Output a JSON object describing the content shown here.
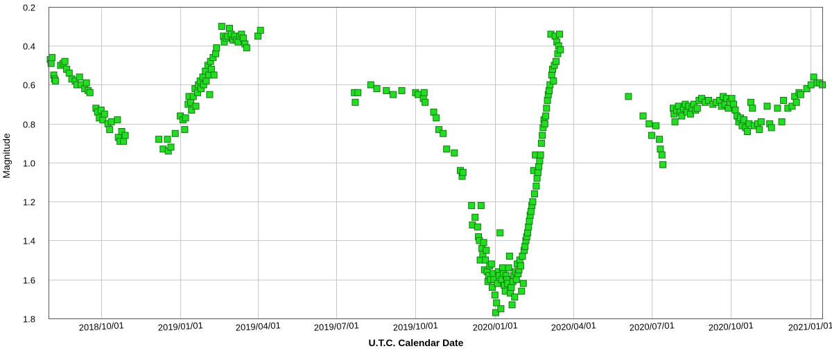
{
  "chart_data": {
    "type": "scatter",
    "title": "",
    "xlabel": "U.T.C. Calendar Date",
    "ylabel": "Magnitude",
    "y_inverted": true,
    "ylim": [
      0.2,
      1.8
    ],
    "xlim": [
      "2018-08-01",
      "2021-01-15"
    ],
    "x_ticks": [
      "2018/10/01",
      "2019/01/01",
      "2019/04/01",
      "2019/07/01",
      "2019/10/01",
      "2020/01/01",
      "2020/04/01",
      "2020/07/01",
      "2020/10/01",
      "2021/01/01"
    ],
    "y_ticks": [
      "0.2",
      "0.4",
      "0.6",
      "0.8",
      "1.0",
      "1.2",
      "1.4",
      "1.6",
      "1.8"
    ],
    "grid": true,
    "marker": "square",
    "marker_color": "#22dd22",
    "marker_edge": "#117711",
    "points": [
      [
        "2018-08-03",
        0.47
      ],
      [
        "2018-08-04",
        0.49
      ],
      [
        "2018-08-05",
        0.46
      ],
      [
        "2018-08-07",
        0.55
      ],
      [
        "2018-08-08",
        0.57
      ],
      [
        "2018-08-09",
        0.58
      ],
      [
        "2018-08-15",
        0.5
      ],
      [
        "2018-08-18",
        0.49
      ],
      [
        "2018-08-20",
        0.48
      ],
      [
        "2018-08-22",
        0.52
      ],
      [
        "2018-08-25",
        0.54
      ],
      [
        "2018-08-28",
        0.57
      ],
      [
        "2018-09-01",
        0.58
      ],
      [
        "2018-09-03",
        0.6
      ],
      [
        "2018-09-06",
        0.56
      ],
      [
        "2018-09-08",
        0.6
      ],
      [
        "2018-09-12",
        0.62
      ],
      [
        "2018-09-14",
        0.59
      ],
      [
        "2018-09-16",
        0.63
      ],
      [
        "2018-09-18",
        0.64
      ],
      [
        "2018-09-25",
        0.72
      ],
      [
        "2018-09-27",
        0.74
      ],
      [
        "2018-09-29",
        0.77
      ],
      [
        "2018-10-01",
        0.73
      ],
      [
        "2018-10-03",
        0.78
      ],
      [
        "2018-10-05",
        0.75
      ],
      [
        "2018-10-09",
        0.8
      ],
      [
        "2018-10-11",
        0.83
      ],
      [
        "2018-10-13",
        0.79
      ],
      [
        "2018-10-20",
        0.78
      ],
      [
        "2018-10-21",
        0.87
      ],
      [
        "2018-10-23",
        0.89
      ],
      [
        "2018-10-25",
        0.84
      ],
      [
        "2018-10-27",
        0.89
      ],
      [
        "2018-10-29",
        0.86
      ],
      [
        "2018-12-07",
        0.88
      ],
      [
        "2018-12-12",
        0.93
      ],
      [
        "2018-12-17",
        0.88
      ],
      [
        "2018-12-18",
        0.94
      ],
      [
        "2018-12-21",
        0.92
      ],
      [
        "2018-12-26",
        0.85
      ],
      [
        "2019-01-01",
        0.76
      ],
      [
        "2019-01-04",
        0.78
      ],
      [
        "2019-01-06",
        0.83
      ],
      [
        "2019-01-07",
        0.77
      ],
      [
        "2019-01-10",
        0.7
      ],
      [
        "2019-01-11",
        0.66
      ],
      [
        "2019-01-13",
        0.69
      ],
      [
        "2019-01-14",
        0.73
      ],
      [
        "2019-01-16",
        0.66
      ],
      [
        "2019-01-18",
        0.62
      ],
      [
        "2019-01-19",
        0.71
      ],
      [
        "2019-01-21",
        0.64
      ],
      [
        "2019-01-22",
        0.6
      ],
      [
        "2019-01-24",
        0.58
      ],
      [
        "2019-01-25",
        0.62
      ],
      [
        "2019-01-27",
        0.56
      ],
      [
        "2019-01-28",
        0.6
      ],
      [
        "2019-01-30",
        0.53
      ],
      [
        "2019-01-31",
        0.58
      ],
      [
        "2019-02-02",
        0.5
      ],
      [
        "2019-02-03",
        0.55
      ],
      [
        "2019-02-04",
        0.65
      ],
      [
        "2019-02-05",
        0.48
      ],
      [
        "2019-02-06",
        0.52
      ],
      [
        "2019-02-08",
        0.46
      ],
      [
        "2019-02-09",
        0.55
      ],
      [
        "2019-02-11",
        0.44
      ],
      [
        "2019-02-12",
        0.41
      ],
      [
        "2019-02-18",
        0.3
      ],
      [
        "2019-02-20",
        0.35
      ],
      [
        "2019-02-21",
        0.38
      ],
      [
        "2019-02-23",
        0.36
      ],
      [
        "2019-02-25",
        0.35
      ],
      [
        "2019-02-27",
        0.31
      ],
      [
        "2019-03-01",
        0.34
      ],
      [
        "2019-03-03",
        0.37
      ],
      [
        "2019-03-05",
        0.35
      ],
      [
        "2019-03-07",
        0.37
      ],
      [
        "2019-03-09",
        0.38
      ],
      [
        "2019-03-11",
        0.35
      ],
      [
        "2019-03-13",
        0.34
      ],
      [
        "2019-03-15",
        0.36
      ],
      [
        "2019-03-17",
        0.39
      ],
      [
        "2019-03-19",
        0.41
      ],
      [
        "2019-04-01",
        0.35
      ],
      [
        "2019-04-04",
        0.32
      ],
      [
        "2019-07-22",
        0.64
      ],
      [
        "2019-07-23",
        0.69
      ],
      [
        "2019-07-26",
        0.64
      ],
      [
        "2019-08-10",
        0.6
      ],
      [
        "2019-08-17",
        0.62
      ],
      [
        "2019-08-28",
        0.63
      ],
      [
        "2019-09-05",
        0.65
      ],
      [
        "2019-09-15",
        0.63
      ],
      [
        "2019-10-01",
        0.64
      ],
      [
        "2019-10-04",
        0.65
      ],
      [
        "2019-10-10",
        0.67
      ],
      [
        "2019-10-11",
        0.64
      ],
      [
        "2019-10-12",
        0.69
      ],
      [
        "2019-10-22",
        0.74
      ],
      [
        "2019-10-25",
        0.77
      ],
      [
        "2019-10-28",
        0.83
      ],
      [
        "2019-11-02",
        0.85
      ],
      [
        "2019-11-06",
        0.93
      ],
      [
        "2019-11-15",
        0.95
      ],
      [
        "2019-11-22",
        1.04
      ],
      [
        "2019-11-24",
        1.07
      ],
      [
        "2019-11-25",
        1.05
      ],
      [
        "2019-12-05",
        1.22
      ],
      [
        "2019-12-06",
        1.32
      ],
      [
        "2019-12-09",
        1.28
      ],
      [
        "2019-12-12",
        1.33
      ],
      [
        "2019-12-13",
        1.38
      ],
      [
        "2019-12-14",
        1.4
      ],
      [
        "2019-12-15",
        1.5
      ],
      [
        "2019-12-16",
        1.22
      ],
      [
        "2019-12-17",
        1.44
      ],
      [
        "2019-12-18",
        1.47
      ],
      [
        "2019-12-19",
        1.41
      ],
      [
        "2019-12-20",
        1.55
      ],
      [
        "2019-12-21",
        1.5
      ],
      [
        "2019-12-22",
        1.45
      ],
      [
        "2019-12-23",
        1.56
      ],
      [
        "2019-12-24",
        1.61
      ],
      [
        "2019-12-25",
        1.58
      ],
      [
        "2019-12-26",
        1.53
      ],
      [
        "2019-12-27",
        1.6
      ],
      [
        "2019-12-28",
        1.52
      ],
      [
        "2019-12-29",
        1.64
      ],
      [
        "2019-12-30",
        1.57
      ],
      [
        "2019-12-31",
        1.6
      ],
      [
        "2020-01-01",
        1.68
      ],
      [
        "2020-01-02",
        1.77
      ],
      [
        "2020-01-03",
        1.72
      ],
      [
        "2020-01-04",
        1.62
      ],
      [
        "2020-01-05",
        1.56
      ],
      [
        "2020-01-06",
        1.58
      ],
      [
        "2020-01-07",
        1.36
      ],
      [
        "2020-01-08",
        1.75
      ],
      [
        "2020-01-09",
        1.6
      ],
      [
        "2020-01-10",
        1.54
      ],
      [
        "2020-01-11",
        1.57
      ],
      [
        "2020-01-12",
        1.63
      ],
      [
        "2020-01-13",
        1.66
      ],
      [
        "2020-01-14",
        1.58
      ],
      [
        "2020-01-15",
        1.6
      ],
      [
        "2020-01-16",
        1.62
      ],
      [
        "2020-01-17",
        1.54
      ],
      [
        "2020-01-18",
        1.48
      ],
      [
        "2020-01-19",
        1.67
      ],
      [
        "2020-01-20",
        1.64
      ],
      [
        "2020-01-21",
        1.73
      ],
      [
        "2020-01-22",
        1.61
      ],
      [
        "2020-01-23",
        1.58
      ],
      [
        "2020-01-24",
        1.69
      ],
      [
        "2020-01-25",
        1.56
      ],
      [
        "2020-01-26",
        1.6
      ],
      [
        "2020-01-27",
        1.52
      ],
      [
        "2020-01-28",
        1.57
      ],
      [
        "2020-01-29",
        1.55
      ],
      [
        "2020-01-30",
        1.5
      ],
      [
        "2020-01-31",
        1.53
      ],
      [
        "2020-02-01",
        1.66
      ],
      [
        "2020-02-02",
        1.48
      ],
      [
        "2020-02-03",
        1.62
      ],
      [
        "2020-02-04",
        1.45
      ],
      [
        "2020-02-05",
        1.43
      ],
      [
        "2020-02-06",
        1.4
      ],
      [
        "2020-02-07",
        1.38
      ],
      [
        "2020-02-08",
        1.36
      ],
      [
        "2020-02-09",
        1.33
      ],
      [
        "2020-02-10",
        1.3
      ],
      [
        "2020-02-11",
        1.27
      ],
      [
        "2020-02-12",
        1.25
      ],
      [
        "2020-02-13",
        1.22
      ],
      [
        "2020-02-14",
        1.2
      ],
      [
        "2020-02-15",
        1.04
      ],
      [
        "2020-02-16",
        1.16
      ],
      [
        "2020-02-17",
        0.96
      ],
      [
        "2020-02-18",
        1.12
      ],
      [
        "2020-02-19",
        1.08
      ],
      [
        "2020-02-20",
        1.05
      ],
      [
        "2020-02-21",
        1.02
      ],
      [
        "2020-02-22",
        0.99
      ],
      [
        "2020-02-23",
        0.96
      ],
      [
        "2020-02-24",
        0.9
      ],
      [
        "2020-02-25",
        0.86
      ],
      [
        "2020-02-26",
        0.82
      ],
      [
        "2020-02-27",
        0.78
      ],
      [
        "2020-02-28",
        0.8
      ],
      [
        "2020-02-29",
        0.76
      ],
      [
        "2020-03-01",
        0.72
      ],
      [
        "2020-03-02",
        0.68
      ],
      [
        "2020-03-03",
        0.65
      ],
      [
        "2020-03-04",
        0.63
      ],
      [
        "2020-03-05",
        0.6
      ],
      [
        "2020-03-06",
        0.34
      ],
      [
        "2020-03-07",
        0.55
      ],
      [
        "2020-03-08",
        0.52
      ],
      [
        "2020-03-09",
        0.58
      ],
      [
        "2020-03-10",
        0.5
      ],
      [
        "2020-03-11",
        0.35
      ],
      [
        "2020-03-12",
        0.48
      ],
      [
        "2020-03-13",
        0.38
      ],
      [
        "2020-03-14",
        0.44
      ],
      [
        "2020-03-15",
        0.4
      ],
      [
        "2020-03-16",
        0.34
      ],
      [
        "2020-03-17",
        0.42
      ],
      [
        "2020-06-04",
        0.66
      ],
      [
        "2020-06-21",
        0.76
      ],
      [
        "2020-06-28",
        0.8
      ],
      [
        "2020-07-01",
        0.86
      ],
      [
        "2020-07-06",
        0.81
      ],
      [
        "2020-07-10",
        0.88
      ],
      [
        "2020-07-11",
        0.93
      ],
      [
        "2020-07-13",
        0.96
      ],
      [
        "2020-07-14",
        1.01
      ],
      [
        "2020-07-26",
        0.72
      ],
      [
        "2020-07-27",
        0.75
      ],
      [
        "2020-07-28",
        0.79
      ],
      [
        "2020-07-30",
        0.73
      ],
      [
        "2020-08-01",
        0.71
      ],
      [
        "2020-08-03",
        0.74
      ],
      [
        "2020-08-05",
        0.76
      ],
      [
        "2020-08-07",
        0.72
      ],
      [
        "2020-08-09",
        0.7
      ],
      [
        "2020-08-11",
        0.74
      ],
      [
        "2020-08-13",
        0.71
      ],
      [
        "2020-08-15",
        0.75
      ],
      [
        "2020-08-17",
        0.72
      ],
      [
        "2020-08-19",
        0.7
      ],
      [
        "2020-08-21",
        0.73
      ],
      [
        "2020-08-23",
        0.72
      ],
      [
        "2020-08-25",
        0.68
      ],
      [
        "2020-08-28",
        0.67
      ],
      [
        "2020-09-01",
        0.69
      ],
      [
        "2020-09-05",
        0.68
      ],
      [
        "2020-09-10",
        0.7
      ],
      [
        "2020-09-14",
        0.69
      ],
      [
        "2020-09-18",
        0.68
      ],
      [
        "2020-09-20",
        0.71
      ],
      [
        "2020-09-22",
        0.66
      ],
      [
        "2020-09-24",
        0.7
      ],
      [
        "2020-09-26",
        0.67
      ],
      [
        "2020-09-28",
        0.72
      ],
      [
        "2020-09-30",
        0.69
      ],
      [
        "2020-10-02",
        0.67
      ],
      [
        "2020-10-04",
        0.7
      ],
      [
        "2020-10-06",
        0.73
      ],
      [
        "2020-10-08",
        0.76
      ],
      [
        "2020-10-10",
        0.79
      ],
      [
        "2020-10-12",
        0.77
      ],
      [
        "2020-10-14",
        0.81
      ],
      [
        "2020-10-16",
        0.78
      ],
      [
        "2020-10-18",
        0.82
      ],
      [
        "2020-10-20",
        0.84
      ],
      [
        "2020-10-22",
        0.8
      ],
      [
        "2020-10-24",
        0.69
      ],
      [
        "2020-10-26",
        0.72
      ],
      [
        "2020-10-28",
        0.81
      ],
      [
        "2020-11-01",
        0.8
      ],
      [
        "2020-11-03",
        0.83
      ],
      [
        "2020-11-05",
        0.79
      ],
      [
        "2020-11-12",
        0.71
      ],
      [
        "2020-11-15",
        0.8
      ],
      [
        "2020-11-17",
        0.82
      ],
      [
        "2020-11-24",
        0.72
      ],
      [
        "2020-11-29",
        0.79
      ],
      [
        "2020-12-01",
        0.68
      ],
      [
        "2020-12-06",
        0.72
      ],
      [
        "2020-12-11",
        0.71
      ],
      [
        "2020-12-14",
        0.66
      ],
      [
        "2020-12-16",
        0.69
      ],
      [
        "2020-12-19",
        0.64
      ],
      [
        "2020-12-21",
        0.65
      ],
      [
        "2020-12-28",
        0.62
      ],
      [
        "2021-01-02",
        0.6
      ],
      [
        "2021-01-05",
        0.56
      ],
      [
        "2021-01-09",
        0.59
      ],
      [
        "2021-01-12",
        0.59
      ],
      [
        "2021-01-15",
        0.6
      ]
    ]
  }
}
